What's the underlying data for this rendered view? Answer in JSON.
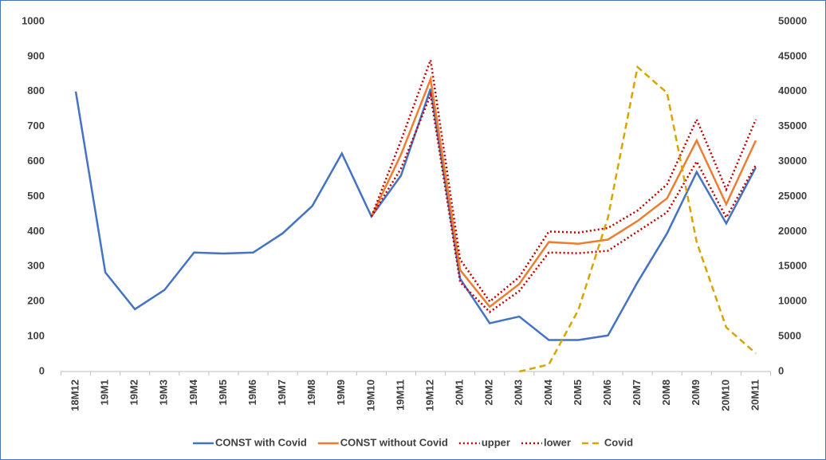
{
  "chart_data": {
    "type": "line",
    "categories": [
      "18M12",
      "19M1",
      "19M2",
      "19M3",
      "19M4",
      "19M5",
      "19M6",
      "19M7",
      "19M8",
      "19M9",
      "19M10",
      "19M11",
      "19M12",
      "20M1",
      "20M2",
      "20M3",
      "20M4",
      "20M5",
      "20M6",
      "20M7",
      "20M8",
      "20M9",
      "20M10",
      "20M11"
    ],
    "series": [
      {
        "name": "CONST with Covid",
        "color": "#4472c4",
        "dash": "solid",
        "values": [
          800,
          283,
          178,
          233,
          340,
          337,
          340,
          395,
          473,
          623,
          443,
          560,
          808,
          265,
          138,
          157,
          90,
          90,
          103,
          255,
          395,
          570,
          423,
          583
        ]
      },
      {
        "name": "CONST without Covid",
        "color": "#ed7d31",
        "dash": "solid",
        "values": [
          null,
          null,
          null,
          null,
          null,
          null,
          null,
          null,
          null,
          null,
          443,
          620,
          835,
          290,
          185,
          250,
          370,
          365,
          377,
          430,
          495,
          660,
          478,
          660
        ]
      },
      {
        "name": "upper",
        "color": "#c00000",
        "dash": "dotted",
        "values": [
          null,
          null,
          null,
          null,
          null,
          null,
          null,
          null,
          null,
          null,
          443,
          660,
          890,
          320,
          200,
          270,
          400,
          397,
          410,
          460,
          535,
          720,
          520,
          720
        ]
      },
      {
        "name": "lower",
        "color": "#c00000",
        "dash": "dotted",
        "values": [
          null,
          null,
          null,
          null,
          null,
          null,
          null,
          null,
          null,
          null,
          443,
          580,
          790,
          255,
          170,
          230,
          340,
          338,
          345,
          400,
          455,
          600,
          440,
          590
        ]
      },
      {
        "name": "Covid",
        "color": "#d9a400",
        "dash": "dashed",
        "axis": "y2",
        "values": [
          null,
          null,
          null,
          null,
          null,
          null,
          null,
          null,
          null,
          null,
          null,
          null,
          null,
          null,
          null,
          0,
          1000,
          8800,
          22000,
          43500,
          39800,
          18500,
          6300,
          2600
        ]
      }
    ],
    "ylim": [
      0,
      1000
    ],
    "yticks": [
      0,
      100,
      200,
      300,
      400,
      500,
      600,
      700,
      800,
      900,
      1000
    ],
    "y2lim": [
      0,
      50000
    ],
    "y2ticks": [
      0,
      5000,
      10000,
      15000,
      20000,
      25000,
      30000,
      35000,
      40000,
      45000,
      50000
    ],
    "grid": false,
    "legend": "bottom"
  }
}
